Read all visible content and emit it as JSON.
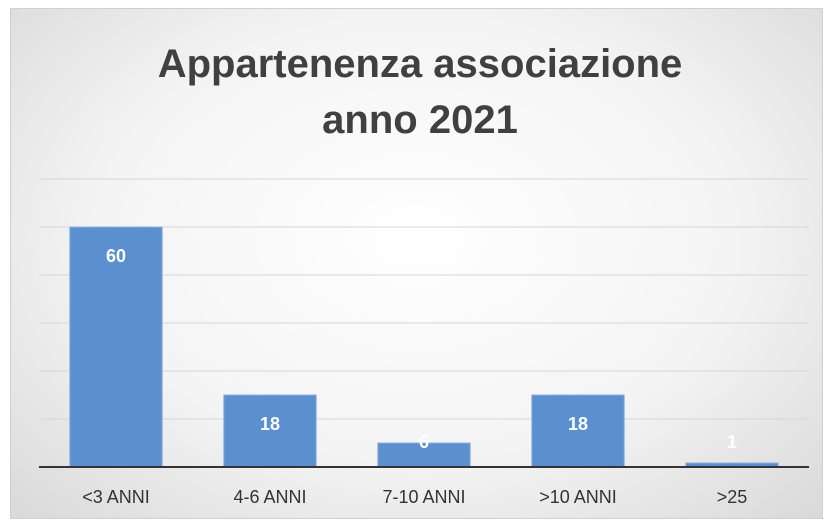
{
  "chart_data": {
    "type": "bar",
    "title": "Appartenenza associazione anno 2021",
    "categories": [
      "<3 ANNI",
      "4-6 ANNI",
      "7-10 ANNI",
      ">10 ANNI",
      ">25"
    ],
    "values": [
      60,
      18,
      6,
      18,
      1
    ],
    "color": "#5b8fd0",
    "ylim": [
      0,
      72
    ],
    "yticks": [
      0,
      12,
      24,
      36,
      48,
      60,
      72
    ],
    "grid": true
  }
}
